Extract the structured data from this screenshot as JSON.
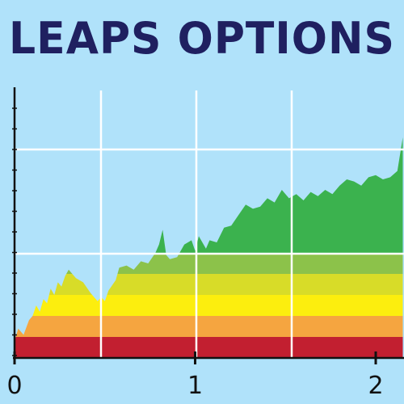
{
  "title": "LEAPS OPTIONS",
  "colors": {
    "background": "#b0e2fa",
    "title": "#1f2060",
    "grid": "#ffffff",
    "axis": "#111111",
    "area": "#3bb24e"
  },
  "chart_data": {
    "type": "area",
    "title": "LEAPS OPTIONS",
    "xlabel": "",
    "ylabel": "",
    "xlim": [
      0,
      2.15
    ],
    "ylim": [
      0,
      13
    ],
    "x_ticks": [
      0,
      1,
      2
    ],
    "x_tick_labels": [
      "0",
      "1",
      "2"
    ],
    "grid": true,
    "bands": [
      {
        "from": 0,
        "to": 1,
        "color": "#c21f30"
      },
      {
        "from": 1,
        "to": 2,
        "color": "#f5a540"
      },
      {
        "from": 2,
        "to": 3,
        "color": "#fcee0e"
      },
      {
        "from": 3,
        "to": 4,
        "color": "#d8dc28"
      },
      {
        "from": 4,
        "to": 5,
        "color": "#8cc24a"
      },
      {
        "from": 5,
        "to": 13,
        "color": "#3bb24e"
      }
    ],
    "series": [
      {
        "x": [
          0,
          0.02,
          0.05,
          0.08,
          0.1,
          0.12,
          0.14,
          0.16,
          0.18,
          0.2,
          0.22,
          0.24,
          0.26,
          0.28,
          0.3,
          0.34,
          0.38,
          0.42,
          0.44,
          0.46,
          0.48,
          0.5,
          0.52,
          0.56,
          0.58,
          0.62,
          0.66,
          0.7,
          0.74,
          0.78,
          0.8,
          0.82,
          0.84,
          0.86,
          0.9,
          0.94,
          0.98,
          1.0,
          1.02,
          1.06,
          1.08,
          1.12,
          1.16,
          1.2,
          1.24,
          1.28,
          1.32,
          1.36,
          1.4,
          1.44,
          1.48,
          1.52,
          1.56,
          1.6,
          1.64,
          1.68,
          1.72,
          1.76,
          1.8,
          1.84,
          1.88,
          1.92,
          1.96,
          2.0,
          2.04,
          2.08,
          2.12,
          2.15
        ],
        "y": [
          0.8,
          1.4,
          1.1,
          1.8,
          2.0,
          2.5,
          2.2,
          2.8,
          2.6,
          3.3,
          3.0,
          3.6,
          3.4,
          3.9,
          4.2,
          3.8,
          3.6,
          3.1,
          2.9,
          2.7,
          2.9,
          2.7,
          3.2,
          3.7,
          4.3,
          4.4,
          4.2,
          4.6,
          4.5,
          5.0,
          5.4,
          6.1,
          4.9,
          4.7,
          4.8,
          5.4,
          5.6,
          5.1,
          5.8,
          5.2,
          5.6,
          5.5,
          6.2,
          6.3,
          6.8,
          7.3,
          7.1,
          7.2,
          7.6,
          7.4,
          8.0,
          7.6,
          7.8,
          7.5,
          7.9,
          7.7,
          8.0,
          7.8,
          8.2,
          8.5,
          8.4,
          8.2,
          8.6,
          8.7,
          8.5,
          8.6,
          8.9,
          10.5
        ]
      }
    ]
  }
}
